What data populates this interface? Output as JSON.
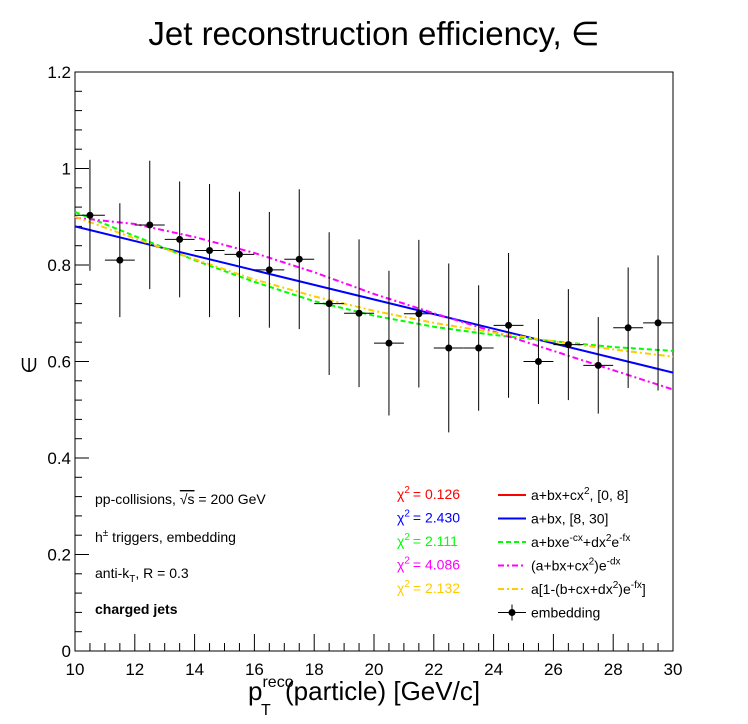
{
  "chart_data": {
    "type": "scatter",
    "title": "Jet reconstruction efficiency, ∈",
    "xlabel": {
      "base": "p",
      "sub": "T",
      "sup": "reco",
      "rest": "(particle) [GeV/c]"
    },
    "ylabel": "∈",
    "xlim": [
      10,
      30
    ],
    "ylim": [
      0,
      1.2
    ],
    "x_ticks": [
      10,
      12,
      14,
      16,
      18,
      20,
      22,
      24,
      26,
      28,
      30
    ],
    "y_ticks": [
      0,
      0.2,
      0.4,
      0.6,
      0.8,
      1,
      1.2
    ],
    "y_tick_labels": [
      "0",
      "0.2",
      "0.4",
      "0.6",
      "0.8",
      "1",
      "1.2"
    ],
    "grid": false,
    "legend_position": "bottom-right",
    "annotations": [
      {
        "id": "ann-collision",
        "parts": [
          "pp-collisions, ",
          "√s",
          " = 200 GeV"
        ]
      },
      {
        "id": "ann-trigger",
        "parts": [
          "h",
          "±",
          " triggers, embedding"
        ]
      },
      {
        "id": "ann-algo",
        "parts": [
          "anti-k",
          "T",
          ", R = 0.3"
        ]
      },
      {
        "id": "ann-jets",
        "parts": [
          "charged jets"
        ]
      }
    ],
    "chi2_label": "χ",
    "chi2_sup": "2",
    "chi2": [
      {
        "value": "= 0.126",
        "color": "#ff0000"
      },
      {
        "value": "= 2.430",
        "color": "#0000ff"
      },
      {
        "value": "= 2.111",
        "color": "#00ff00"
      },
      {
        "value": "= 4.086",
        "color": "#ff00ff"
      },
      {
        "value": "= 2.132",
        "color": "#ffcc00"
      }
    ],
    "legend": [
      {
        "parts": [
          "a+bx+cx",
          "2",
          ", [0, 8]"
        ],
        "color": "#ff0000",
        "style": "solid"
      },
      {
        "parts": [
          "a+bx, [8, 30]"
        ],
        "color": "#0000ff",
        "style": "solid"
      },
      {
        "parts": [
          "a+bxe",
          "-cx",
          "+dx",
          "2",
          "e",
          "-fx"
        ],
        "color": "#00ff00",
        "style": "dashed"
      },
      {
        "parts": [
          "(a+bx+cx",
          "2",
          ")e",
          "-dx"
        ],
        "color": "#ff00ff",
        "style": "dashdot"
      },
      {
        "parts": [
          "a[1-(b+cx+dx",
          "2",
          ")e",
          "-fx",
          "]"
        ],
        "color": "#ffcc00",
        "style": "dashdot"
      },
      {
        "parts": [
          "embedding"
        ],
        "color": "#000000",
        "style": "marker"
      }
    ],
    "series": [
      {
        "name": "embedding",
        "color": "#000000",
        "x": [
          10.5,
          11.5,
          12.5,
          13.5,
          14.5,
          15.5,
          16.5,
          17.5,
          18.5,
          19.5,
          20.5,
          21.5,
          22.5,
          23.5,
          24.5,
          25.5,
          26.5,
          27.5,
          28.5,
          29.5
        ],
        "y": [
          0.903,
          0.81,
          0.883,
          0.853,
          0.83,
          0.822,
          0.79,
          0.812,
          0.72,
          0.7,
          0.638,
          0.699,
          0.628,
          0.628,
          0.675,
          0.6,
          0.635,
          0.592,
          0.67,
          0.68
        ],
        "yerr": [
          0.115,
          0.118,
          0.133,
          0.12,
          0.138,
          0.13,
          0.12,
          0.145,
          0.148,
          0.153,
          0.15,
          0.153,
          0.175,
          0.13,
          0.15,
          0.088,
          0.115,
          0.1,
          0.125,
          0.14
        ]
      },
      {
        "name": "a+bx, [8, 30]",
        "type": "line",
        "color": "#0000ff",
        "x": [
          10,
          30
        ],
        "y": [
          0.88,
          0.577
        ]
      },
      {
        "name": "a+bxe^-cx+dx^2e^-fx",
        "type": "line",
        "color": "#00ff00",
        "x": [
          10,
          12,
          14,
          16,
          18,
          20,
          22,
          24,
          26,
          28,
          30
        ],
        "y": [
          0.91,
          0.86,
          0.81,
          0.765,
          0.725,
          0.695,
          0.672,
          0.655,
          0.642,
          0.63,
          0.622
        ]
      },
      {
        "name": "(a+bx+cx^2)e^-dx",
        "type": "line",
        "color": "#ff00ff",
        "x": [
          10,
          12,
          14,
          16,
          18,
          20,
          22,
          24,
          26,
          28,
          30
        ],
        "y": [
          0.898,
          0.885,
          0.858,
          0.825,
          0.785,
          0.74,
          0.7,
          0.662,
          0.622,
          0.582,
          0.542
        ]
      },
      {
        "name": "a[1-(b+cx+dx^2)e^-fx]",
        "type": "line",
        "color": "#ffcc00",
        "x": [
          10,
          12,
          14,
          16,
          18,
          20,
          22,
          24,
          26,
          28,
          30
        ],
        "y": [
          0.9,
          0.855,
          0.812,
          0.77,
          0.735,
          0.705,
          0.68,
          0.66,
          0.642,
          0.625,
          0.61
        ]
      }
    ]
  }
}
